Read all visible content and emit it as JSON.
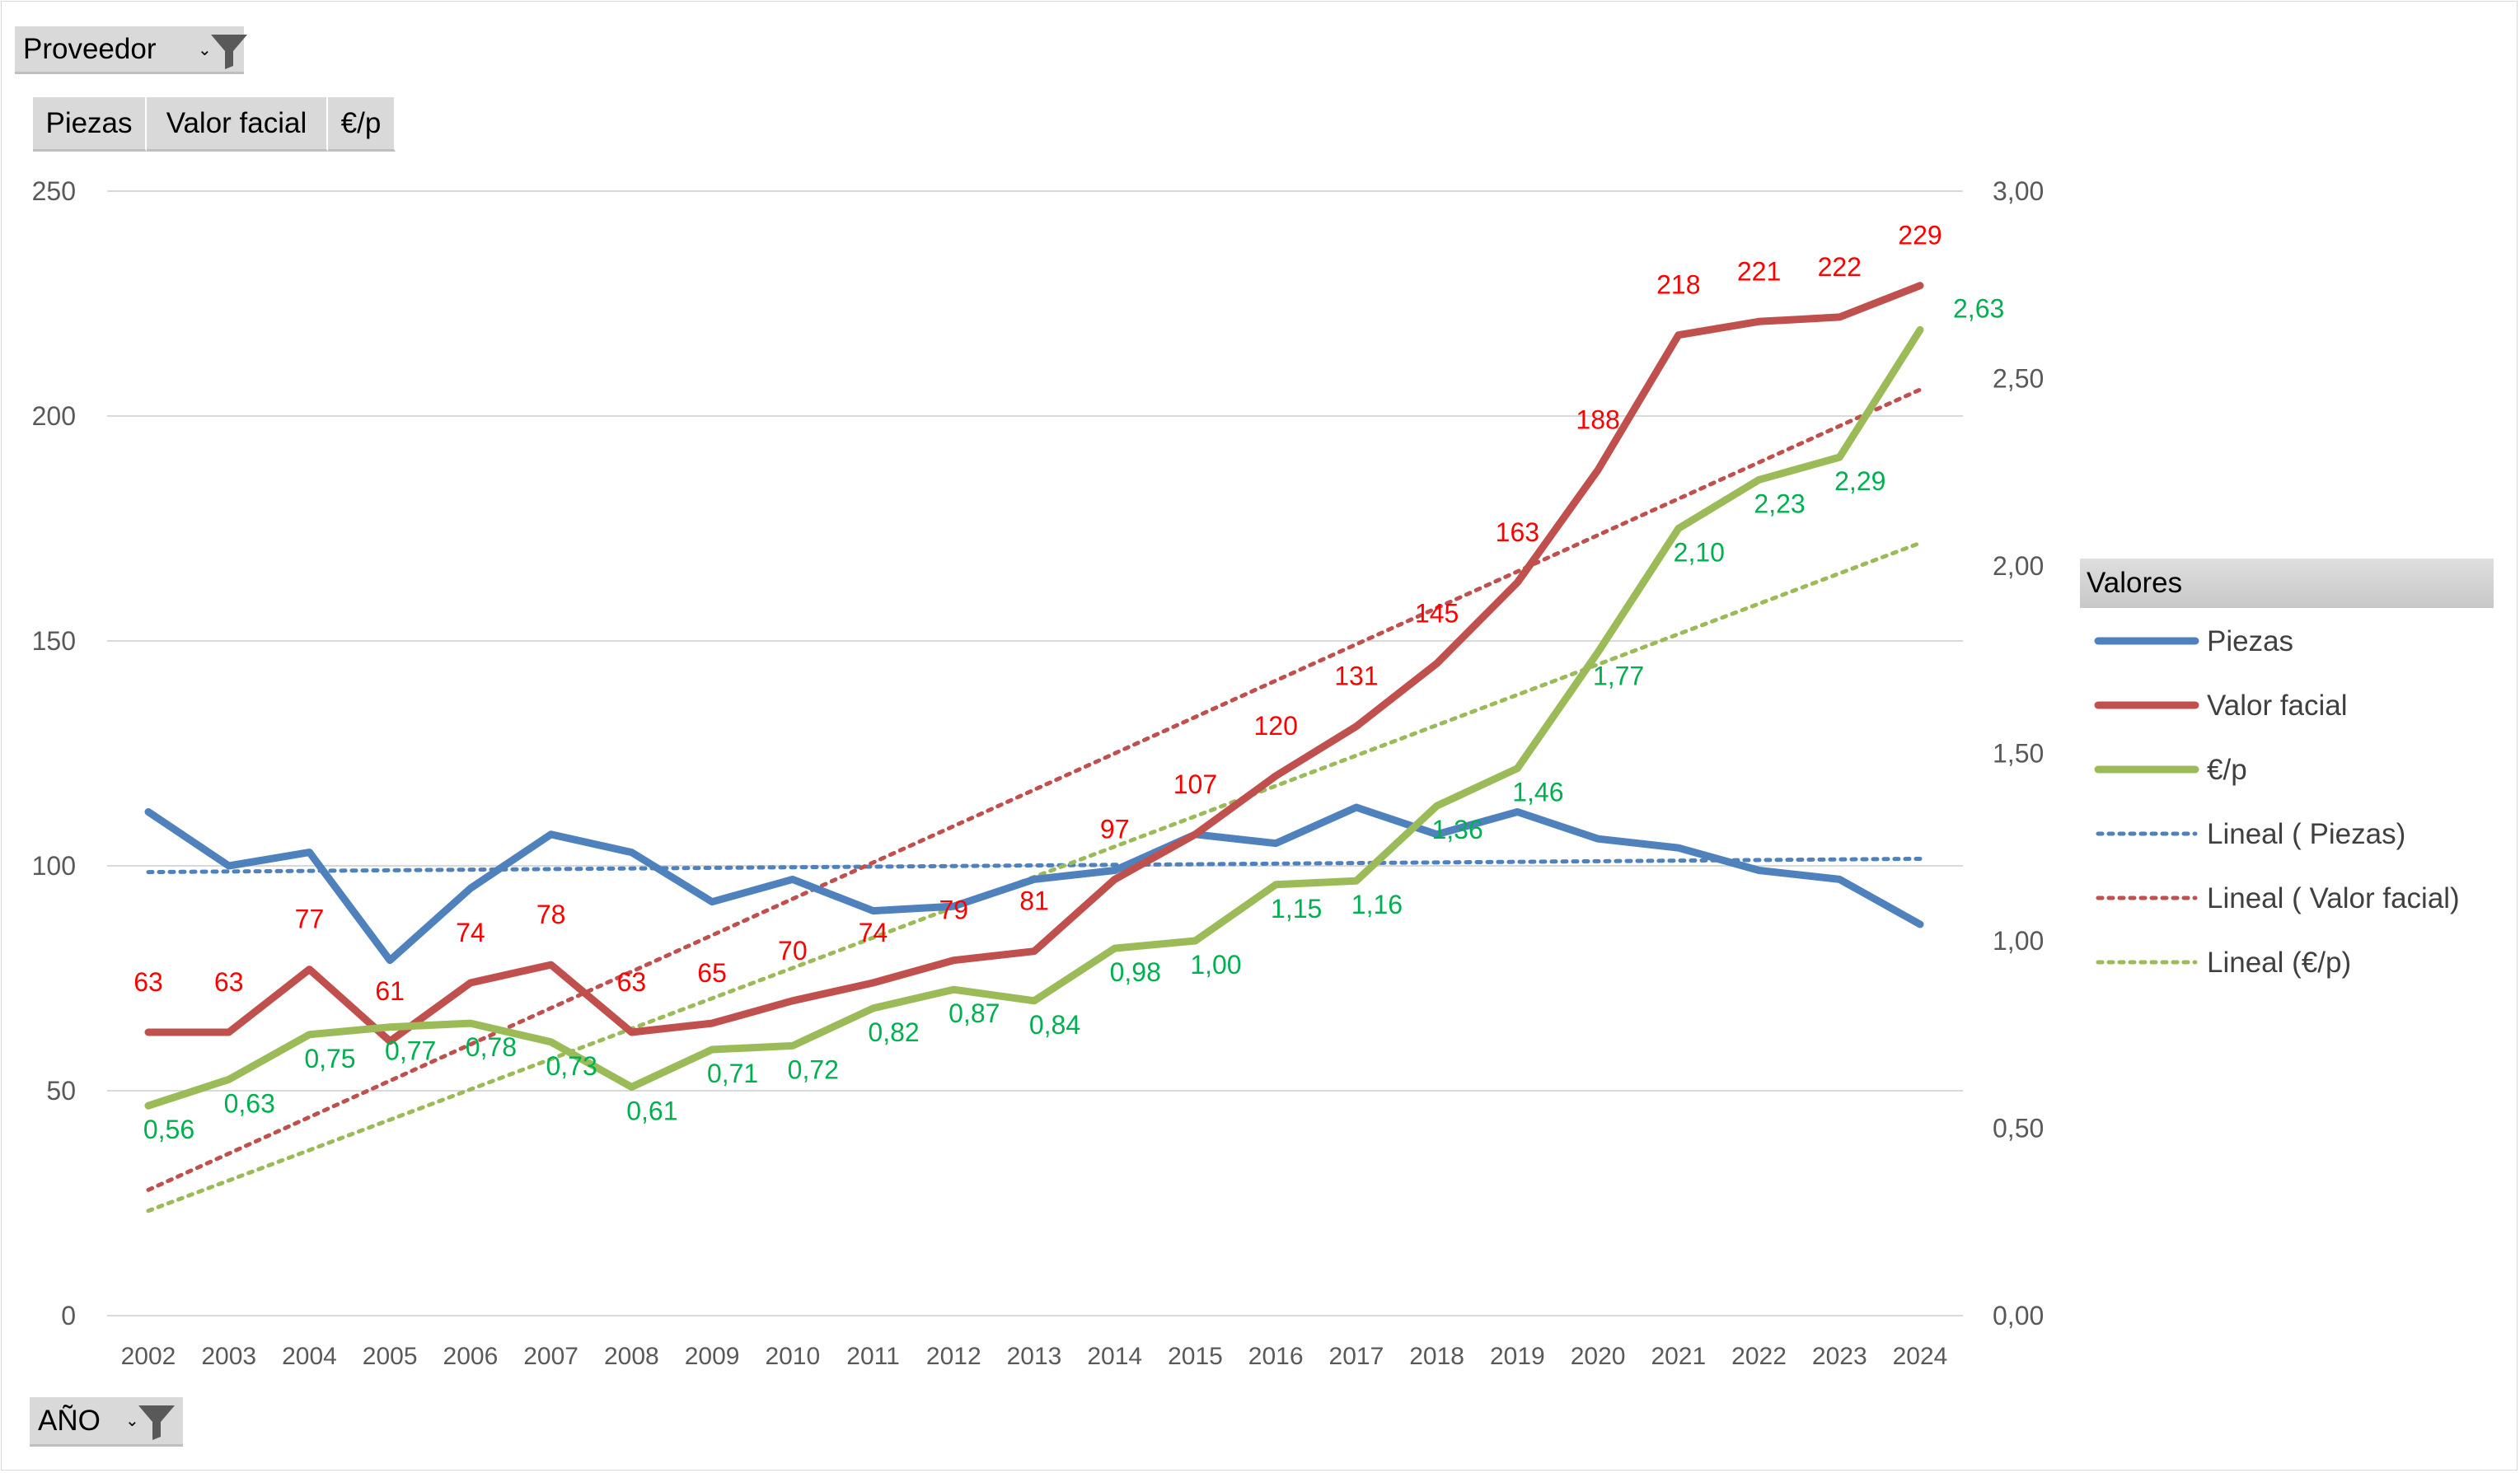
{
  "filters": {
    "proveedor_label": "Proveedor",
    "anio_label": "AÑO",
    "value_fields": [
      "Piezas",
      "Valor facial",
      "€/p"
    ]
  },
  "legend": {
    "title": "Valores",
    "entries": [
      {
        "label": "Piezas",
        "style": "solid",
        "color": "#4f81bd"
      },
      {
        "label": "Valor facial",
        "style": "solid",
        "color": "#c0504d"
      },
      {
        "label": "€/p",
        "style": "solid",
        "color": "#9bbb59"
      },
      {
        "label": "Lineal ( Piezas)",
        "style": "dotted",
        "color": "#4f81bd"
      },
      {
        "label": "Lineal ( Valor facial)",
        "style": "dotted",
        "color": "#c0504d"
      },
      {
        "label": "Lineal (€/p)",
        "style": "dotted",
        "color": "#9bbb59"
      }
    ]
  },
  "chart_data": {
    "type": "line",
    "title": "",
    "xlabel": "",
    "ylabel": "",
    "categories": [
      "2002",
      "2003",
      "2004",
      "2005",
      "2006",
      "2007",
      "2008",
      "2009",
      "2010",
      "2011",
      "2012",
      "2013",
      "2014",
      "2015",
      "2016",
      "2017",
      "2018",
      "2019",
      "2020",
      "2021",
      "2022",
      "2023",
      "2024"
    ],
    "y_left": {
      "min": 0,
      "max": 250,
      "ticks": [
        "0",
        "50",
        "100",
        "150",
        "200",
        "250"
      ]
    },
    "y_right": {
      "min": 0,
      "max": 3,
      "ticks": [
        "0,00",
        "0,50",
        "1,00",
        "1,50",
        "2,00",
        "2,50",
        "3,00"
      ]
    },
    "grid": true,
    "legend_position": "right",
    "series": [
      {
        "name": "Piezas",
        "axis": "left",
        "color": "#4f81bd",
        "values": [
          112,
          100,
          103,
          79,
          95,
          107,
          103,
          92,
          97,
          90,
          91,
          97,
          99,
          107,
          105,
          113,
          107,
          112,
          106,
          104,
          99,
          97,
          87
        ],
        "labels": []
      },
      {
        "name": "Valor facial",
        "axis": "left",
        "color": "#c0504d",
        "values": [
          63,
          63,
          77,
          61,
          74,
          78,
          63,
          65,
          70,
          74,
          79,
          81,
          97,
          107,
          120,
          131,
          145,
          163,
          188,
          218,
          221,
          222,
          229
        ],
        "labels": [
          "63",
          "63",
          "77",
          "61",
          "74",
          "78",
          "63",
          "65",
          "70",
          "74",
          "79",
          "81",
          "97",
          "107",
          "120",
          "131",
          "145",
          "163",
          "188",
          "218",
          "221",
          "222",
          "229"
        ]
      },
      {
        "name": "€/p",
        "axis": "right",
        "color": "#9bbb59",
        "label_color": "#00b050",
        "values": [
          0.56,
          0.63,
          0.75,
          0.77,
          0.78,
          0.73,
          0.61,
          0.71,
          0.72,
          0.82,
          0.87,
          0.84,
          0.98,
          1.0,
          1.15,
          1.16,
          1.36,
          1.46,
          1.77,
          2.1,
          2.23,
          2.29,
          2.63
        ],
        "labels": [
          "0,56",
          "0,63",
          "0,75",
          "0,77",
          "0,78",
          "0,73",
          "0,61",
          "0,71",
          "0,72",
          "0,82",
          "0,87",
          "0,84",
          "0,98",
          "1,00",
          "1,15",
          "1,16",
          "1,36",
          "1,46",
          "1,77",
          "2,10",
          "2,23",
          "2,29",
          "2,63"
        ]
      }
    ],
    "trendlines": [
      {
        "name": "Lineal ( Piezas)",
        "of": "Piezas",
        "type": "linear",
        "color": "#4f81bd"
      },
      {
        "name": "Lineal ( Valor facial)",
        "of": "Valor facial",
        "type": "linear",
        "color": "#c0504d"
      },
      {
        "name": "Lineal (€/p)",
        "of": "€/p",
        "type": "linear",
        "color": "#9bbb59"
      }
    ]
  }
}
